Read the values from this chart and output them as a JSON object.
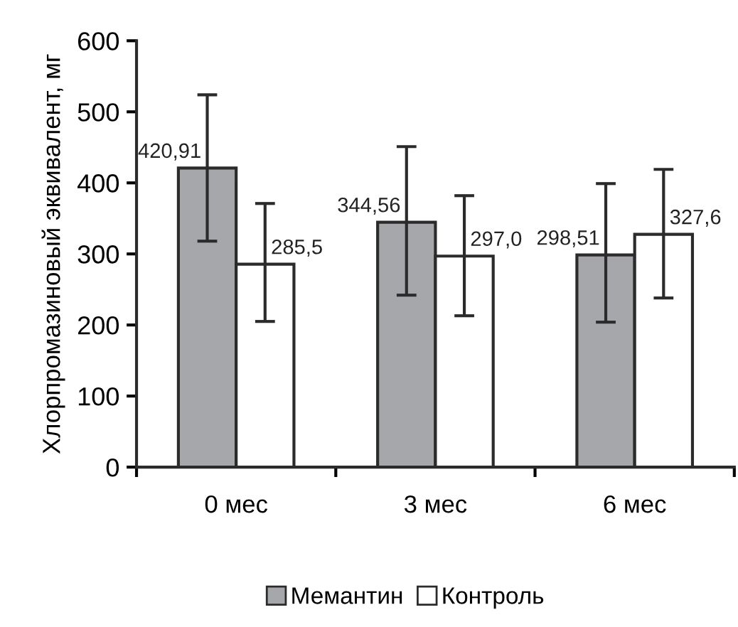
{
  "chart_data": {
    "type": "bar",
    "ylabel": "Хлорпромазиновый эквивалент, мг",
    "categories": [
      "0 мес",
      "3 мес",
      "6 мес"
    ],
    "series": [
      {
        "name": "Мемантин",
        "color": "#a6a7aa",
        "values": [
          420.91,
          344.56,
          298.51
        ],
        "errors": [
          [
            318,
            524
          ],
          [
            242,
            451
          ],
          [
            204,
            399
          ]
        ],
        "value_labels": [
          "420,91",
          "344,56",
          "298,51"
        ]
      },
      {
        "name": "Контроль",
        "color": "#ffffff",
        "values": [
          285.5,
          297.0,
          327.6
        ],
        "errors": [
          [
            205,
            371
          ],
          [
            213,
            382
          ],
          [
            238,
            419
          ]
        ],
        "value_labels": [
          "285,5",
          "297,0",
          "327,6"
        ]
      }
    ],
    "ylim": [
      0,
      600
    ],
    "yticks": [
      0,
      100,
      200,
      300,
      400,
      500,
      600
    ],
    "grid": false,
    "legend": "bottom"
  }
}
